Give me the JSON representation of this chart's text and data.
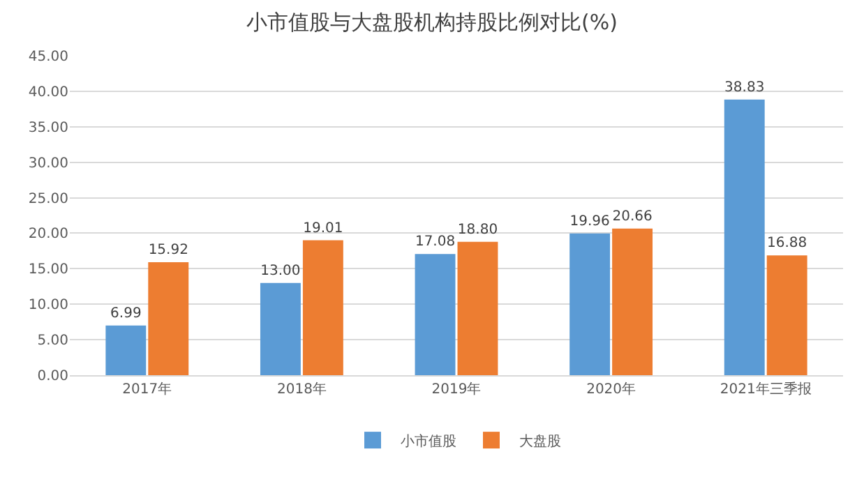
{
  "chart_data": {
    "type": "bar",
    "title": "小市值股与大盘股机构持股比例对比(%)",
    "categories": [
      "2017年",
      "2018年",
      "2019年",
      "2020年",
      "2021年三季报"
    ],
    "series": [
      {
        "name": "小市值股",
        "color": "#5b9bd5",
        "values": [
          6.99,
          13.0,
          17.08,
          19.96,
          38.83
        ],
        "value_labels": [
          "6.99",
          "13.00",
          "17.08",
          "19.96",
          "38.83"
        ]
      },
      {
        "name": "大盘股",
        "color": "#ed7d31",
        "values": [
          15.92,
          19.01,
          18.8,
          20.66,
          16.88
        ],
        "value_labels": [
          "15.92",
          "19.01",
          "18.80",
          "20.66",
          "16.88"
        ]
      }
    ],
    "ylim": [
      0,
      45
    ],
    "yticks": [
      {
        "value": 0,
        "label": "0.00"
      },
      {
        "value": 5,
        "label": "5.00"
      },
      {
        "value": 10,
        "label": "10.00"
      },
      {
        "value": 15,
        "label": "15.00"
      },
      {
        "value": 20,
        "label": "20.00"
      },
      {
        "value": 25,
        "label": "25.00"
      },
      {
        "value": 30,
        "label": "30.00"
      },
      {
        "value": 35,
        "label": "35.00"
      },
      {
        "value": 40,
        "label": "40.00"
      },
      {
        "value": 45,
        "label": "45.00"
      }
    ],
    "grid": "y",
    "legend": "bottom"
  }
}
